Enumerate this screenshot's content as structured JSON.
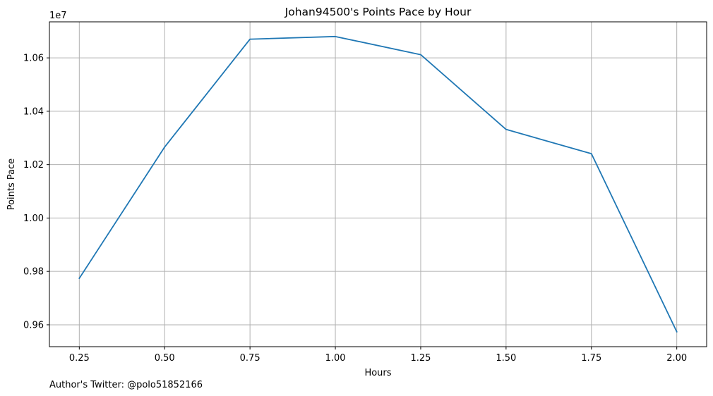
{
  "chart_data": {
    "type": "line",
    "title": "Johan94500's Points Pace by Hour",
    "xlabel": "Hours",
    "ylabel": "Points Pace",
    "y_offset_label": "1e7",
    "footnote": "Author's Twitter: @polo51852166",
    "x": [
      0.25,
      0.5,
      0.75,
      1.0,
      1.25,
      1.5,
      1.75,
      2.0
    ],
    "series": [
      {
        "values": [
          9774000,
          10266000,
          10670000,
          10680000,
          10612000,
          10332000,
          10241000,
          9574000
        ]
      }
    ],
    "x_ticks": [
      0.25,
      0.5,
      0.75,
      1.0,
      1.25,
      1.5,
      1.75,
      2.0
    ],
    "x_tick_labels": [
      "0.25",
      "0.50",
      "0.75",
      "1.00",
      "1.25",
      "1.50",
      "1.75",
      "2.00"
    ],
    "y_ticks": [
      9600000,
      9800000,
      10000000,
      10200000,
      10400000,
      10600000
    ],
    "y_tick_labels": [
      "0.96",
      "0.98",
      "1.00",
      "1.02",
      "1.04",
      "1.06"
    ],
    "xlim": [
      0.1625,
      2.0875
    ],
    "ylim": [
      9518000,
      10735000
    ],
    "grid": true,
    "colors": {
      "line": "#1f77b4",
      "grid": "#b0b0b0",
      "axes": "#000000"
    }
  }
}
